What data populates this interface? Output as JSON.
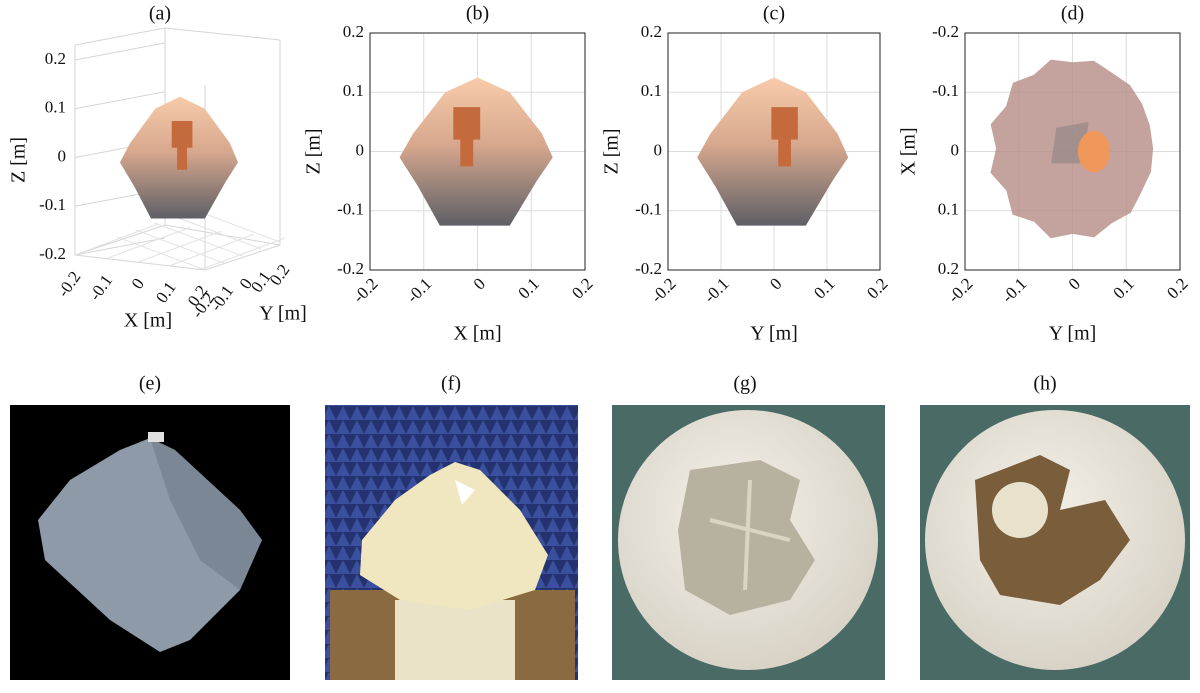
{
  "panels_top": [
    {
      "label": "(a)",
      "xlabel": "X [m]",
      "ylabel": "Y [m]",
      "zlabel": "Z [m]",
      "xticks": [
        -0.2,
        -0.1,
        0,
        0.1,
        0.2
      ],
      "yticks": [
        -0.2,
        -0.1,
        0,
        0.1,
        0.2
      ],
      "zticks": [
        -0.2,
        -0.1,
        0,
        0.1,
        0.2
      ],
      "zlim": [
        -0.2,
        0.2
      ]
    },
    {
      "label": "(b)",
      "xlabel": "X [m]",
      "ylabel": "Z [m]",
      "xlim": [
        -0.2,
        0.2
      ],
      "ylim": [
        -0.2,
        0.2
      ],
      "xticks": [
        -0.2,
        -0.1,
        0,
        0.1,
        0.2
      ],
      "yticks": [
        -0.2,
        -0.1,
        0,
        0.1,
        0.2
      ]
    },
    {
      "label": "(c)",
      "xlabel": "Y [m]",
      "ylabel": "Z [m]",
      "xlim": [
        -0.2,
        0.2
      ],
      "ylim": [
        -0.2,
        0.2
      ],
      "xticks": [
        -0.2,
        -0.1,
        0,
        0.1,
        0.2
      ],
      "yticks": [
        -0.2,
        -0.1,
        0,
        0.1,
        0.2
      ]
    },
    {
      "label": "(d)",
      "xlabel": "Y [m]",
      "ylabel": "X [m]",
      "xlim": [
        -0.2,
        0.2
      ],
      "ylim": [
        -0.2,
        0.2
      ],
      "xticks": [
        -0.2,
        -0.1,
        0,
        0.1,
        0.2
      ],
      "yticks": [
        -0.2,
        -0.1,
        0,
        0.1,
        0.2
      ],
      "yreverse": true
    }
  ],
  "panels_bottom": [
    {
      "label": "(e)"
    },
    {
      "label": "(f)"
    },
    {
      "label": "(g)"
    },
    {
      "label": "(h)"
    }
  ]
}
